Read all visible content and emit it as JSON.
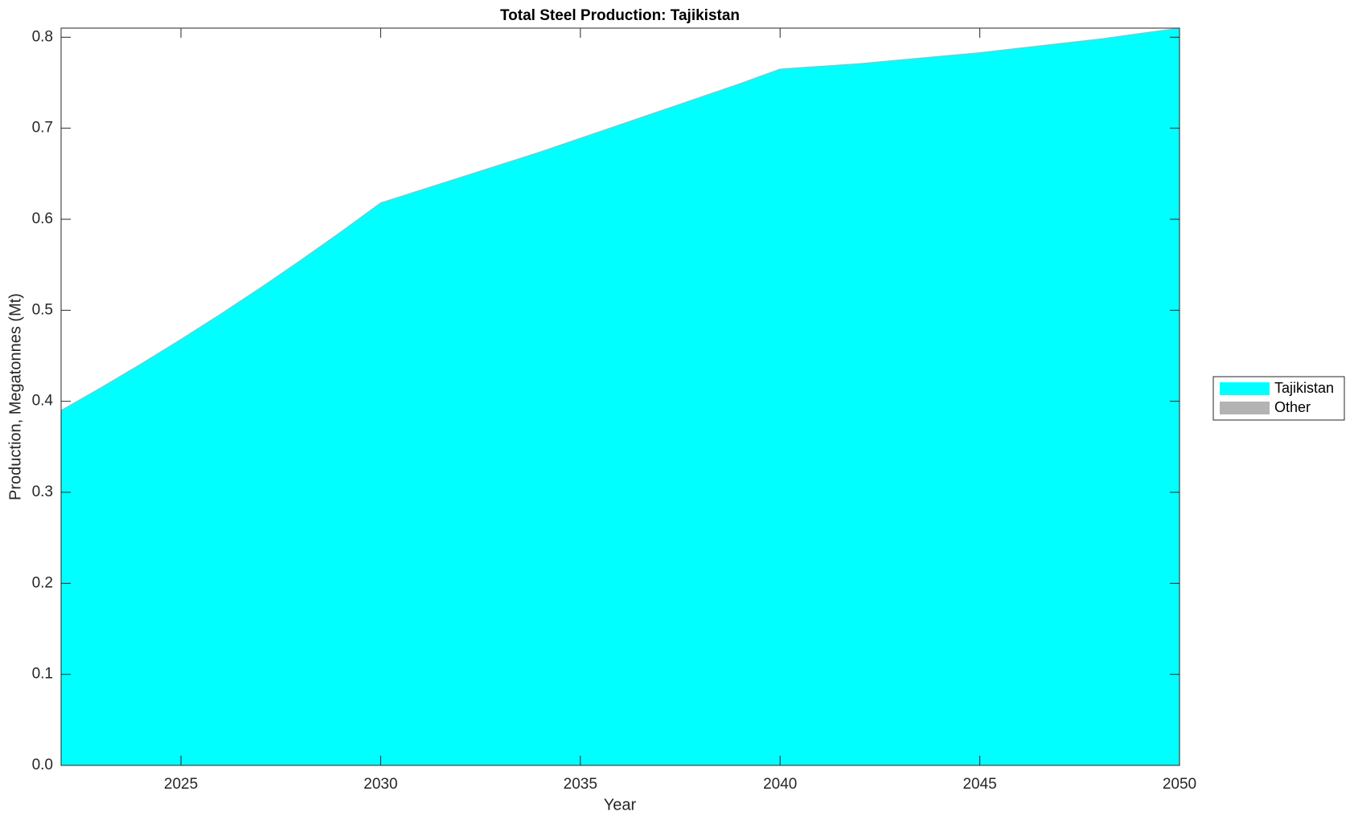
{
  "chart_data": {
    "type": "stacked-area",
    "title": "Total Steel Production: Tajikistan",
    "x_label": "Year",
    "y_label": "Production, Megatonnes (Mt)",
    "x": [
      2022,
      2023,
      2024,
      2025,
      2026,
      2027,
      2028,
      2029,
      2030,
      2031,
      2032,
      2033,
      2034,
      2035,
      2036,
      2037,
      2038,
      2039,
      2040,
      2041,
      2042,
      2043,
      2044,
      2045,
      2046,
      2047,
      2048,
      2049,
      2050
    ],
    "series": [
      {
        "name": "Tajikistan",
        "color": "#00ffff",
        "values": [
          0.39,
          0.415,
          0.441,
          0.468,
          0.496,
          0.525,
          0.555,
          0.586,
          0.618,
          0.632,
          0.646,
          0.66,
          0.674,
          0.689,
          0.704,
          0.719,
          0.734,
          0.749,
          0.765,
          0.768,
          0.771,
          0.775,
          0.779,
          0.783,
          0.788,
          0.793,
          0.798,
          0.804,
          0.81
        ]
      },
      {
        "name": "Other",
        "color": "#b3b3b3",
        "values": [
          0,
          0,
          0,
          0,
          0,
          0,
          0,
          0,
          0,
          0,
          0,
          0,
          0,
          0,
          0,
          0,
          0,
          0,
          0,
          0,
          0,
          0,
          0,
          0,
          0,
          0,
          0,
          0,
          0
        ]
      }
    ],
    "xlim": [
      2022,
      2050
    ],
    "xticks": [
      2025,
      2030,
      2035,
      2040,
      2045,
      2050
    ],
    "ylim": [
      0,
      0.81
    ],
    "yticks": [
      {
        "value": 0,
        "label": "0.0"
      },
      0.1,
      0.2,
      0.3,
      0.4,
      0.5,
      0.6,
      0.7,
      0.8
    ],
    "legend": "right"
  }
}
